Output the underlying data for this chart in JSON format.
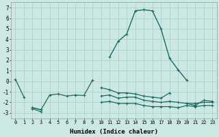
{
  "xlabel": "Humidex (Indice chaleur)",
  "bg_color": "#cce8e4",
  "grid_color": "#b0d0cc",
  "line_color": "#1a6b5a",
  "x": [
    0,
    1,
    2,
    3,
    4,
    5,
    6,
    7,
    8,
    9,
    10,
    11,
    12,
    13,
    14,
    15,
    16,
    17,
    18,
    19,
    20,
    21,
    22,
    23
  ],
  "series_main": [
    null,
    null,
    null,
    null,
    null,
    null,
    null,
    null,
    null,
    null,
    null,
    2.3,
    3.8,
    4.5,
    6.7,
    6.8,
    6.7,
    5.0,
    2.2,
    1.1,
    0.1,
    null,
    null,
    null
  ],
  "series_a": [
    0.2,
    -1.5,
    null,
    null,
    null,
    null,
    null,
    null,
    null,
    null,
    null,
    null,
    null,
    null,
    null,
    null,
    null,
    null,
    null,
    null,
    null,
    null,
    null,
    null
  ],
  "series_b": [
    null,
    null,
    -2.5,
    -2.7,
    -1.3,
    -1.2,
    -1.4,
    -1.3,
    -1.35,
    0.1,
    null,
    null,
    null,
    null,
    null,
    null,
    null,
    null,
    null,
    null,
    null,
    null,
    null,
    null
  ],
  "series_c": [
    null,
    null,
    null,
    null,
    null,
    null,
    null,
    null,
    null,
    null,
    -0.6,
    -0.8,
    -1.1,
    -1.1,
    -1.2,
    -1.4,
    -1.5,
    -1.6,
    -1.1,
    null,
    -2.1,
    -2.3,
    -1.8,
    -1.9
  ],
  "series_d": [
    null,
    null,
    -2.5,
    -2.7,
    null,
    null,
    null,
    null,
    null,
    null,
    -1.4,
    -1.3,
    -1.6,
    -1.5,
    -1.5,
    -1.8,
    -1.9,
    -2.0,
    -1.9,
    -2.0,
    -2.1,
    -2.1,
    -2.0,
    -2.0
  ],
  "series_e": [
    null,
    null,
    -2.6,
    -2.9,
    null,
    null,
    null,
    null,
    null,
    null,
    -2.0,
    -1.9,
    -2.1,
    -2.1,
    -2.1,
    -2.3,
    -2.4,
    -2.4,
    -2.4,
    -2.5,
    -2.3,
    -2.4,
    -2.3,
    -2.3
  ],
  "ylim": [
    -3.5,
    7.5
  ],
  "xlim": [
    -0.5,
    23.5
  ],
  "yticks": [
    -3,
    -2,
    -1,
    0,
    1,
    2,
    3,
    4,
    5,
    6,
    7
  ],
  "xticks": [
    0,
    1,
    2,
    3,
    4,
    5,
    6,
    7,
    8,
    9,
    10,
    11,
    12,
    13,
    14,
    15,
    16,
    17,
    18,
    19,
    20,
    21,
    22,
    23
  ]
}
